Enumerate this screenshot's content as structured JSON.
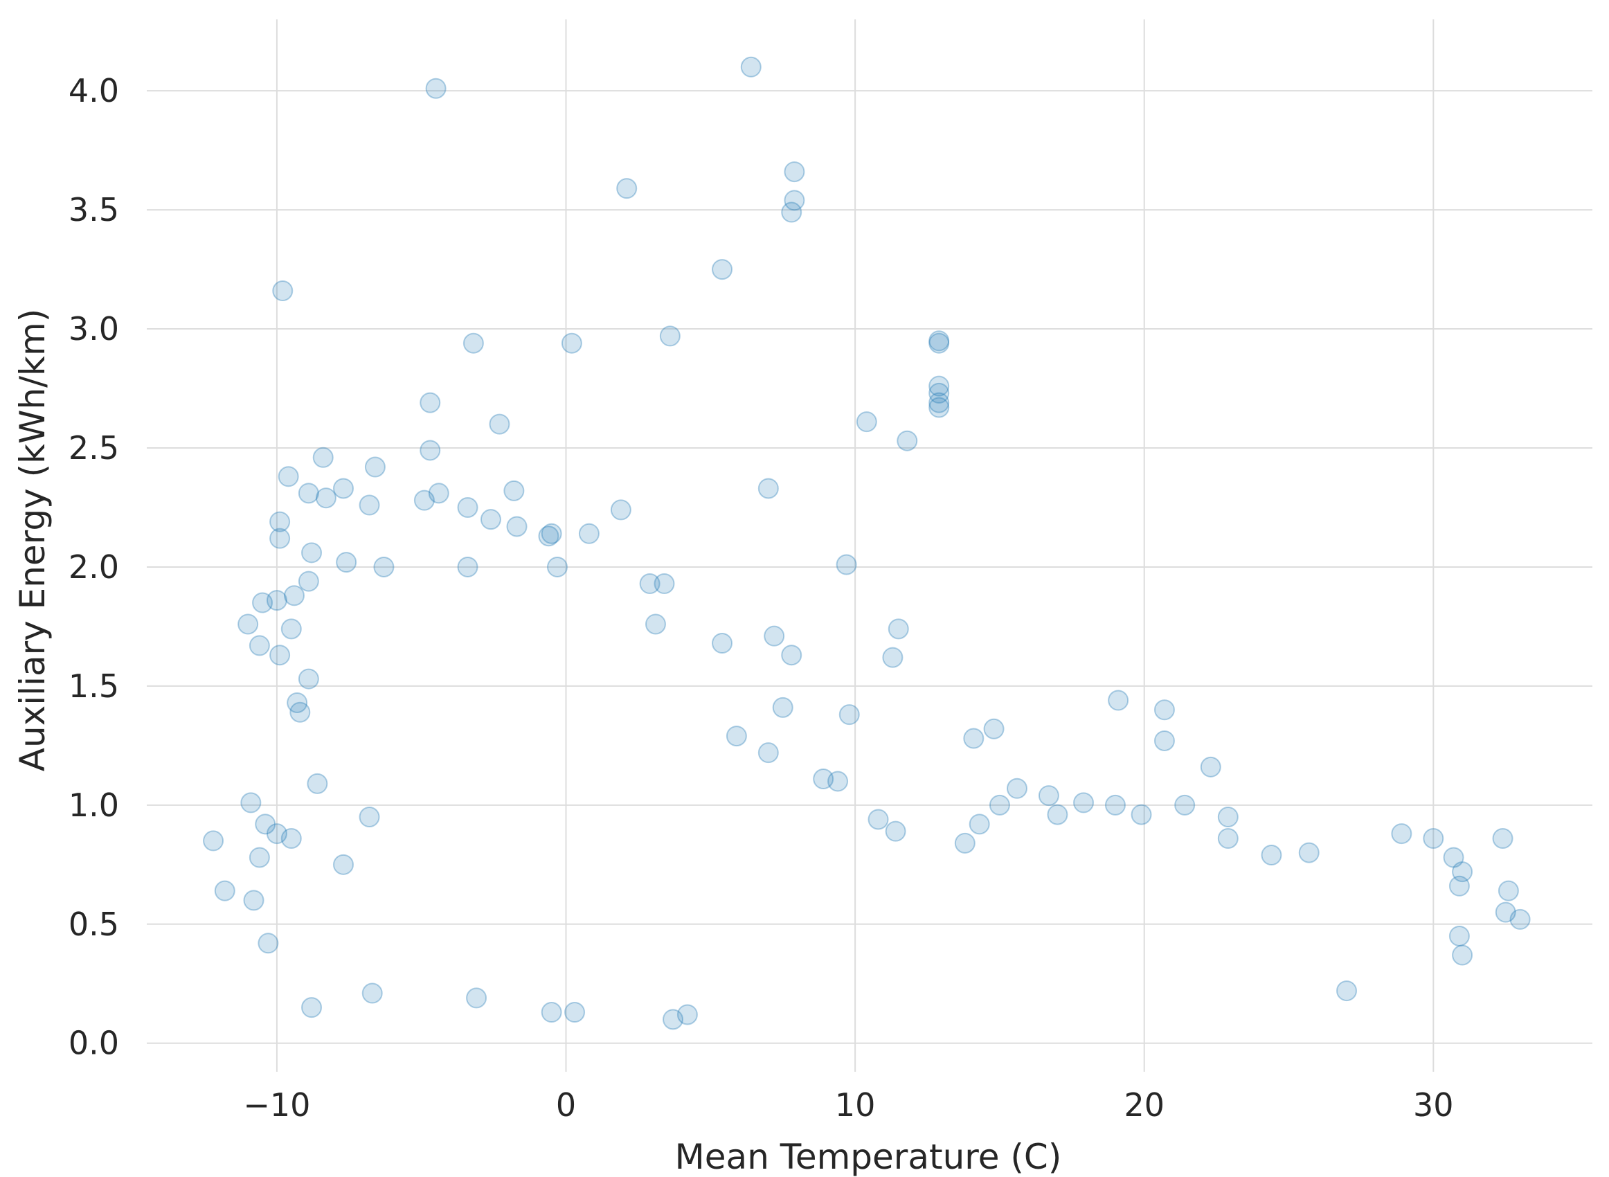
{
  "chart_data": {
    "type": "scatter",
    "title": "",
    "xlabel": "Mean Temperature (C)",
    "ylabel": "Auxiliary Energy (kWh/km)",
    "xlim": [
      -14.5,
      35.5
    ],
    "ylim": [
      -0.12,
      4.3
    ],
    "xticks": [
      -10,
      0,
      10,
      20,
      30
    ],
    "xtick_labels": [
      "−10",
      "0",
      "10",
      "20",
      "30"
    ],
    "yticks": [
      0.0,
      0.5,
      1.0,
      1.5,
      2.0,
      2.5,
      3.0,
      3.5,
      4.0
    ],
    "ytick_labels": [
      "0.0",
      "0.5",
      "1.0",
      "1.5",
      "2.0",
      "2.5",
      "3.0",
      "3.5",
      "4.0"
    ],
    "grid": true,
    "marker_color": "#1f77b4",
    "marker_alpha": 0.2,
    "series": [
      {
        "points": [
          [
            -4.5,
            4.01
          ],
          [
            6.4,
            4.1
          ],
          [
            2.1,
            3.59
          ],
          [
            7.9,
            3.66
          ],
          [
            7.9,
            3.54
          ],
          [
            7.8,
            3.49
          ],
          [
            5.4,
            3.25
          ],
          [
            -9.8,
            3.16
          ],
          [
            -3.2,
            2.94
          ],
          [
            0.2,
            2.94
          ],
          [
            3.6,
            2.97
          ],
          [
            12.9,
            2.95
          ],
          [
            12.9,
            2.94
          ],
          [
            12.9,
            2.76
          ],
          [
            12.9,
            2.73
          ],
          [
            12.9,
            2.67
          ],
          [
            12.9,
            2.69
          ],
          [
            10.4,
            2.61
          ],
          [
            11.8,
            2.53
          ],
          [
            -4.7,
            2.69
          ],
          [
            -2.3,
            2.6
          ],
          [
            -4.7,
            2.49
          ],
          [
            -8.4,
            2.46
          ],
          [
            -6.6,
            2.42
          ],
          [
            -9.6,
            2.38
          ],
          [
            7.0,
            2.33
          ],
          [
            -1.8,
            2.32
          ],
          [
            -7.7,
            2.33
          ],
          [
            -8.9,
            2.31
          ],
          [
            -8.3,
            2.29
          ],
          [
            -4.9,
            2.28
          ],
          [
            -4.4,
            2.31
          ],
          [
            -6.8,
            2.26
          ],
          [
            -3.4,
            2.25
          ],
          [
            1.9,
            2.24
          ],
          [
            -9.9,
            2.19
          ],
          [
            -2.6,
            2.2
          ],
          [
            -1.7,
            2.17
          ],
          [
            -9.9,
            2.12
          ],
          [
            -0.6,
            2.13
          ],
          [
            -0.5,
            2.14
          ],
          [
            0.8,
            2.14
          ],
          [
            9.7,
            2.01
          ],
          [
            -8.8,
            2.06
          ],
          [
            -7.6,
            2.02
          ],
          [
            -0.3,
            2.0
          ],
          [
            -3.4,
            2.0
          ],
          [
            -6.3,
            2.0
          ],
          [
            -10.0,
            1.86
          ],
          [
            -10.5,
            1.85
          ],
          [
            -9.4,
            1.88
          ],
          [
            -8.9,
            1.94
          ],
          [
            2.9,
            1.93
          ],
          [
            3.4,
            1.93
          ],
          [
            -11.0,
            1.76
          ],
          [
            -10.6,
            1.67
          ],
          [
            -9.5,
            1.74
          ],
          [
            3.1,
            1.76
          ],
          [
            7.2,
            1.71
          ],
          [
            11.5,
            1.74
          ],
          [
            5.4,
            1.68
          ],
          [
            -9.9,
            1.63
          ],
          [
            7.8,
            1.63
          ],
          [
            11.3,
            1.62
          ],
          [
            -8.9,
            1.53
          ],
          [
            -9.3,
            1.43
          ],
          [
            -9.2,
            1.39
          ],
          [
            -8.6,
            1.09
          ],
          [
            19.1,
            1.44
          ],
          [
            20.7,
            1.4
          ],
          [
            20.7,
            1.27
          ],
          [
            14.8,
            1.32
          ],
          [
            14.1,
            1.28
          ],
          [
            22.3,
            1.16
          ],
          [
            9.8,
            1.38
          ],
          [
            7.5,
            1.41
          ],
          [
            5.9,
            1.29
          ],
          [
            7.0,
            1.22
          ],
          [
            -10.9,
            1.01
          ],
          [
            -10.4,
            0.92
          ],
          [
            -10.0,
            0.88
          ],
          [
            -9.5,
            0.86
          ],
          [
            -12.2,
            0.85
          ],
          [
            -11.8,
            0.64
          ],
          [
            -10.6,
            0.78
          ],
          [
            -10.8,
            0.6
          ],
          [
            -10.3,
            0.42
          ],
          [
            -8.8,
            0.15
          ],
          [
            -6.7,
            0.21
          ],
          [
            -3.1,
            0.19
          ],
          [
            -6.8,
            0.95
          ],
          [
            -7.7,
            0.75
          ],
          [
            -0.5,
            0.13
          ],
          [
            0.3,
            0.13
          ],
          [
            3.7,
            0.1
          ],
          [
            4.2,
            0.12
          ],
          [
            32.4,
            0.86
          ],
          [
            32.6,
            0.64
          ],
          [
            32.5,
            0.55
          ],
          [
            33.0,
            0.52
          ],
          [
            31.0,
            0.37
          ],
          [
            31.0,
            0.72
          ],
          [
            30.9,
            0.66
          ],
          [
            30.7,
            0.78
          ],
          [
            30.9,
            0.45
          ],
          [
            28.9,
            0.88
          ],
          [
            30.0,
            0.86
          ],
          [
            27.0,
            0.22
          ],
          [
            24.4,
            0.79
          ],
          [
            22.9,
            0.95
          ],
          [
            21.4,
            1.0
          ],
          [
            19.0,
            1.0
          ],
          [
            17.9,
            1.01
          ],
          [
            15.6,
            1.07
          ],
          [
            16.7,
            1.04
          ],
          [
            13.8,
            0.84
          ],
          [
            11.4,
            0.89
          ],
          [
            10.8,
            0.94
          ],
          [
            9.4,
            1.1
          ],
          [
            8.9,
            1.11
          ],
          [
            14.3,
            0.92
          ],
          [
            15.0,
            1.0
          ],
          [
            17.0,
            0.96
          ],
          [
            19.9,
            0.96
          ],
          [
            22.9,
            0.86
          ],
          [
            25.7,
            0.8
          ]
        ]
      }
    ]
  }
}
